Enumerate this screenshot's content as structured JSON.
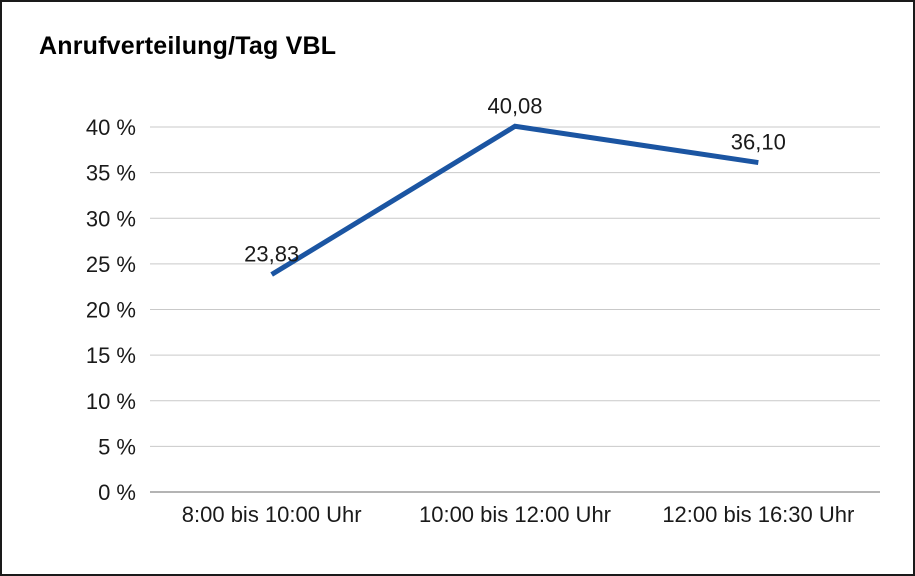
{
  "chart_data": {
    "type": "line",
    "title": "Anrufverteilung/Tag VBL",
    "categories": [
      "8:00 bis 10:00 Uhr",
      "10:00 bis 12:00 Uhr",
      "12:00 bis 16:30 Uhr"
    ],
    "values": [
      23.83,
      40.08,
      36.1
    ],
    "data_labels": [
      "23,83",
      "40,08",
      "36,10"
    ],
    "ylim": [
      0,
      40
    ],
    "ytick_step": 5,
    "ytick_labels": [
      "0 %",
      "5 %",
      "10 %",
      "15 %",
      "20 %",
      "25 %",
      "30 %",
      "35 %",
      "40 %"
    ],
    "xlabel": "",
    "ylabel": "",
    "grid": true,
    "legend": "none",
    "line_color": "#1b55a2",
    "grid_color": "#c9c9c9",
    "baseline_color": "#9b9b9b",
    "text_color": "#1a1a1a"
  }
}
